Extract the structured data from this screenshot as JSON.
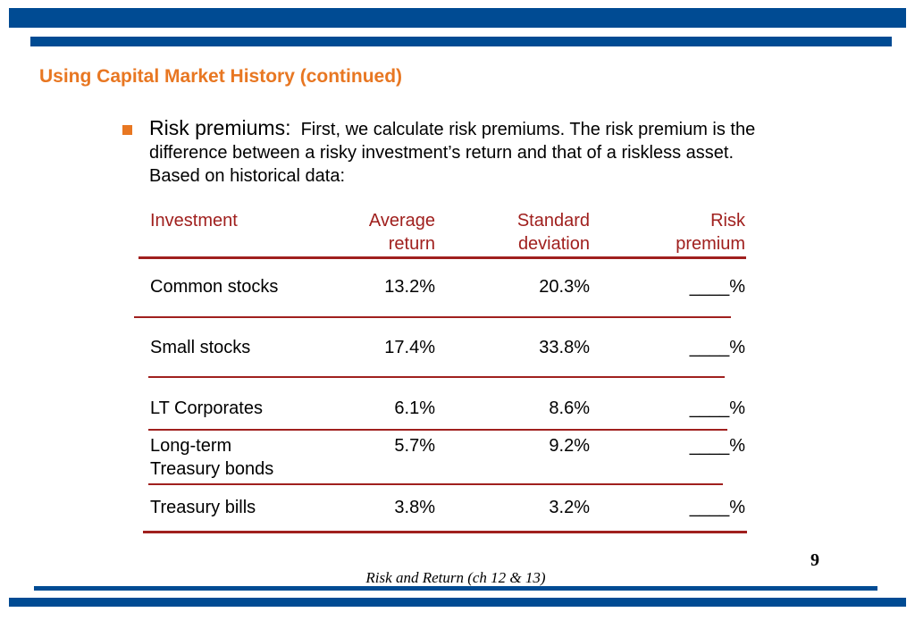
{
  "slide": {
    "title": "Using Capital Market History (continued)",
    "bullet": {
      "lead": "Risk premiums:",
      "text": "First, we calculate risk premiums. The risk premium is the difference between a risky investment’s return and that of a riskless asset. Based on historical data:"
    },
    "table": {
      "headers": {
        "investment": "Investment",
        "avg_line1": "Average",
        "avg_line2": "return",
        "std_line1": "Standard",
        "std_line2": "deviation",
        "risk_line1": "Risk",
        "risk_line2": "premium"
      },
      "rows": [
        {
          "name_line1": "Common stocks",
          "name_line2": "",
          "avg": "13.2%",
          "std": "20.3%",
          "premium": "____%"
        },
        {
          "name_line1": "Small stocks",
          "name_line2": "",
          "avg": "17.4%",
          "std": "33.8%",
          "premium": "____%"
        },
        {
          "name_line1": "LT Corporates",
          "name_line2": "",
          "avg": "6.1%",
          "std": "8.6%",
          "premium": "____%"
        },
        {
          "name_line1": "Long-term",
          "name_line2": "Treasury bonds",
          "avg": "5.7%",
          "std": "9.2%",
          "premium": "____%"
        },
        {
          "name_line1": "Treasury bills",
          "name_line2": "",
          "avg": "3.8%",
          "std": "3.2%",
          "premium": "____%"
        }
      ]
    },
    "page_number": "9",
    "footer": "Risk and Return (ch 12 & 13)",
    "colors": {
      "band": "#004b93",
      "title": "#e87722",
      "header": "#a0201e",
      "rule": "#a0201e"
    }
  }
}
